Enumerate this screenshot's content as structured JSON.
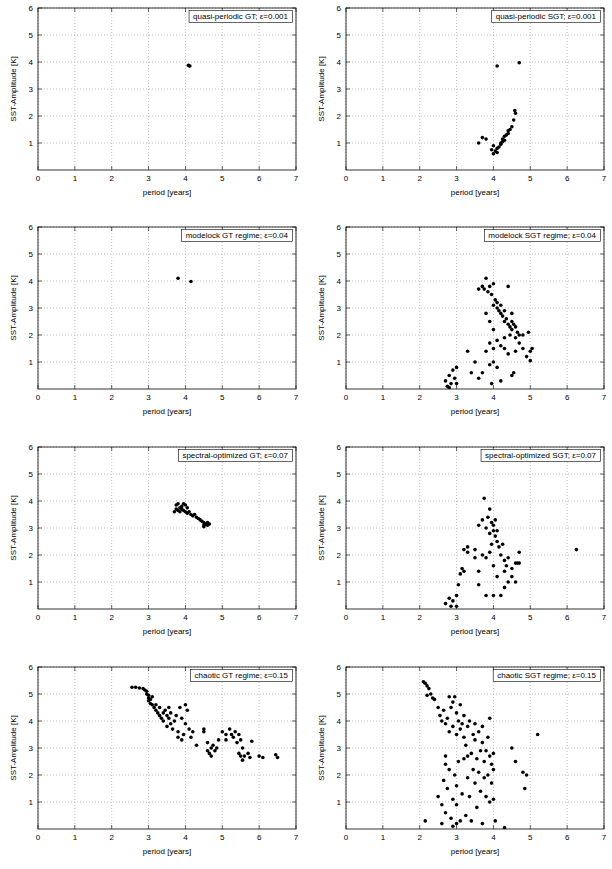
{
  "chart_data": [
    {
      "type": "scatter",
      "title": "quasi-periodic GT; ε=0.001",
      "x_label": "period [years]",
      "y_label": "SST-Amplitude [K]",
      "color": "#000000",
      "marker": "circle",
      "grid": true,
      "xlim": [
        0,
        7
      ],
      "xticks": [
        0,
        1,
        2,
        3,
        4,
        5,
        6,
        7
      ],
      "ylim": [
        0,
        6
      ],
      "yticks": [
        1,
        2,
        3,
        4,
        5,
        6
      ],
      "x": [
        4.08,
        4.1,
        4.12
      ],
      "values": [
        3.88,
        3.86,
        3.85
      ]
    },
    {
      "type": "scatter",
      "title": "quasi-periodic SGT; ε=0.001",
      "x_label": "period [years]",
      "y_label": "SST-Amplitude [K]",
      "color": "#000000",
      "marker": "circle",
      "grid": true,
      "xlim": [
        0,
        7
      ],
      "xticks": [
        0,
        1,
        2,
        3,
        4,
        5,
        6,
        7
      ],
      "ylim": [
        0,
        6
      ],
      "yticks": [
        1,
        2,
        3,
        4,
        5,
        6
      ],
      "x": [
        4.0,
        4.05,
        4.1,
        4.1,
        4.15,
        4.2,
        4.2,
        4.25,
        4.25,
        4.3,
        4.3,
        4.35,
        4.4,
        4.4,
        4.45,
        4.5,
        4.55,
        4.6,
        4.58,
        3.6,
        3.7,
        3.8,
        4.1,
        4.7,
        3.95,
        4.0
      ],
      "values": [
        0.6,
        0.7,
        0.65,
        0.8,
        0.85,
        0.95,
        1.0,
        1.05,
        1.15,
        1.1,
        1.25,
        1.3,
        1.35,
        1.45,
        1.5,
        1.6,
        1.85,
        2.1,
        2.2,
        1.0,
        1.2,
        1.15,
        3.85,
        3.97,
        0.75,
        0.9
      ]
    },
    {
      "type": "scatter",
      "title": "modelock GT regime; ε=0.04",
      "x_label": "period [years]",
      "y_label": "SST-Amplitude [K]",
      "color": "#000000",
      "marker": "circle",
      "grid": true,
      "xlim": [
        0,
        7
      ],
      "xticks": [
        0,
        1,
        2,
        3,
        4,
        5,
        6,
        7
      ],
      "ylim": [
        0,
        6
      ],
      "yticks": [
        1,
        2,
        3,
        4,
        5,
        6
      ],
      "x": [
        3.8,
        4.15
      ],
      "values": [
        4.1,
        3.98
      ]
    },
    {
      "type": "scatter",
      "title": "modelock SGT regime; ε=0.04",
      "x_label": "period [years]",
      "y_label": "SST-Amplitude [K]",
      "color": "#000000",
      "marker": "circle",
      "grid": true,
      "xlim": [
        0,
        7
      ],
      "xticks": [
        0,
        1,
        2,
        3,
        4,
        5,
        6,
        7
      ],
      "ylim": [
        0,
        6
      ],
      "yticks": [
        1,
        2,
        3,
        4,
        5,
        6
      ],
      "x": [
        2.7,
        2.75,
        2.8,
        2.85,
        2.9,
        2.95,
        3.0,
        2.8,
        3.0,
        3.3,
        3.5,
        3.6,
        3.7,
        3.8,
        3.9,
        3.95,
        4.0,
        4.1,
        4.2,
        3.7,
        3.75,
        3.8,
        3.85,
        3.9,
        3.95,
        4.0,
        4.05,
        4.0,
        4.1,
        4.1,
        4.15,
        4.2,
        4.2,
        4.25,
        4.3,
        4.3,
        4.35,
        4.4,
        4.45,
        4.5,
        4.5,
        4.55,
        4.6,
        4.65,
        4.7,
        4.4,
        4.5,
        3.8,
        3.9,
        4.0,
        4.1,
        4.2,
        4.3,
        4.4,
        4.5,
        4.55,
        4.6,
        4.7,
        4.8,
        4.9,
        4.95,
        5.0,
        5.0,
        5.05,
        4.8,
        3.6,
        3.4,
        4.3,
        4.0,
        4.45,
        4.6,
        3.9
      ],
      "values": [
        0.3,
        0.1,
        0.5,
        0.2,
        0.7,
        0.4,
        0.8,
        0.05,
        0.2,
        1.4,
        1.0,
        0.4,
        0.6,
        1.4,
        1.7,
        0.2,
        1.0,
        0.8,
        0.3,
        3.8,
        3.7,
        4.1,
        3.6,
        3.8,
        3.5,
        3.9,
        3.3,
        3.1,
        3.2,
        3.0,
        2.9,
        3.1,
        2.8,
        2.7,
        2.9,
        2.5,
        2.6,
        2.4,
        2.3,
        2.5,
        2.2,
        2.4,
        2.3,
        2.1,
        2.0,
        3.8,
        2.8,
        2.8,
        2.5,
        2.2,
        1.8,
        1.6,
        1.9,
        1.3,
        0.5,
        0.6,
        1.4,
        1.7,
        1.5,
        1.2,
        2.1,
        1.05,
        1.4,
        1.5,
        2.0,
        3.7,
        0.6,
        1.5,
        1.5,
        2.0,
        1.9,
        0.9
      ]
    },
    {
      "type": "scatter",
      "title": "spectral-optimized GT; ε=0.07",
      "x_label": "period [years]",
      "y_label": "SST-Amplitude [K]",
      "color": "#000000",
      "marker": "circle",
      "grid": true,
      "xlim": [
        0,
        7
      ],
      "xticks": [
        0,
        1,
        2,
        3,
        4,
        5,
        6,
        7
      ],
      "ylim": [
        0,
        6
      ],
      "yticks": [
        1,
        2,
        3,
        4,
        5,
        6
      ],
      "x": [
        3.75,
        3.75,
        3.8,
        3.8,
        3.85,
        3.85,
        3.9,
        3.9,
        3.95,
        4.0,
        4.0,
        4.05,
        4.05,
        4.1,
        4.15,
        4.2,
        4.25,
        4.3,
        4.35,
        4.4,
        4.45,
        4.5,
        4.5,
        4.55,
        4.6,
        4.6,
        4.65,
        4.5,
        3.7,
        3.95
      ],
      "values": [
        3.85,
        3.7,
        3.9,
        3.65,
        3.75,
        3.6,
        3.8,
        3.7,
        3.65,
        3.85,
        3.6,
        3.75,
        3.55,
        3.6,
        3.5,
        3.45,
        3.5,
        3.4,
        3.35,
        3.3,
        3.25,
        3.2,
        3.1,
        3.15,
        3.1,
        3.2,
        3.15,
        3.05,
        3.6,
        3.9
      ]
    },
    {
      "type": "scatter",
      "title": "spectral-optimized SGT; ε=0.07",
      "x_label": "period [years]",
      "y_label": "SST-Amplitude [K]",
      "color": "#000000",
      "marker": "circle",
      "grid": true,
      "xlim": [
        0,
        7
      ],
      "xticks": [
        0,
        1,
        2,
        3,
        4,
        5,
        6,
        7
      ],
      "ylim": [
        0,
        6
      ],
      "yticks": [
        1,
        2,
        3,
        4,
        5,
        6
      ],
      "x": [
        2.7,
        2.8,
        2.85,
        2.9,
        3.0,
        3.0,
        3.05,
        3.1,
        3.15,
        3.2,
        3.2,
        3.3,
        3.3,
        3.5,
        3.6,
        3.7,
        3.75,
        3.8,
        3.85,
        3.9,
        3.9,
        3.95,
        4.0,
        4.0,
        4.05,
        4.1,
        4.1,
        4.15,
        4.2,
        4.25,
        4.3,
        4.35,
        4.4,
        4.5,
        4.6,
        4.65,
        4.7,
        4.7,
        4.5,
        4.4,
        4.3,
        4.2,
        4.0,
        3.8,
        3.6,
        3.5,
        3.7,
        3.8,
        3.9,
        4.0,
        4.1,
        4.3,
        6.25,
        4.6,
        3.95,
        4.05,
        3.6
      ],
      "values": [
        0.2,
        0.4,
        0.1,
        0.3,
        0.5,
        0.1,
        0.9,
        1.3,
        1.5,
        1.4,
        2.2,
        2.3,
        2.1,
        2.2,
        3.1,
        3.3,
        4.1,
        3.0,
        3.4,
        2.8,
        3.7,
        3.2,
        3.1,
        2.9,
        2.7,
        2.5,
        2.9,
        2.3,
        2.0,
        2.4,
        1.8,
        1.6,
        1.9,
        1.5,
        1.7,
        1.7,
        1.7,
        2.1,
        1.2,
        1.0,
        0.8,
        0.5,
        0.5,
        0.5,
        1.4,
        1.9,
        2.0,
        1.9,
        2.1,
        1.6,
        1.2,
        1.4,
        2.2,
        1.0,
        2.4,
        3.3,
        0.9
      ]
    },
    {
      "type": "scatter",
      "title": "chaotic GT regime; ε=0.15",
      "x_label": "period [years]",
      "y_label": "SST-Amplitude [K]",
      "color": "#000000",
      "marker": "circle",
      "grid": true,
      "xlim": [
        0,
        7
      ],
      "xticks": [
        0,
        1,
        2,
        3,
        4,
        5,
        6,
        7
      ],
      "ylim": [
        0,
        6
      ],
      "yticks": [
        1,
        2,
        3,
        4,
        5,
        6
      ],
      "x": [
        2.55,
        2.65,
        2.75,
        2.85,
        2.9,
        2.95,
        2.95,
        3.0,
        3.0,
        3.0,
        3.05,
        3.05,
        3.1,
        3.1,
        3.15,
        3.2,
        3.2,
        3.25,
        3.3,
        3.3,
        3.35,
        3.4,
        3.4,
        3.45,
        3.5,
        3.5,
        3.55,
        3.55,
        3.6,
        3.6,
        3.65,
        3.7,
        3.75,
        3.8,
        3.85,
        3.9,
        3.95,
        4.0,
        4.0,
        4.05,
        4.1,
        4.15,
        4.2,
        3.9,
        3.8,
        4.3,
        4.5,
        4.5,
        4.6,
        4.6,
        4.65,
        4.7,
        4.7,
        4.75,
        4.8,
        4.85,
        4.9,
        5.0,
        5.1,
        5.1,
        5.2,
        5.25,
        5.3,
        5.35,
        5.4,
        5.45,
        5.5,
        5.55,
        5.5,
        5.55,
        5.6,
        5.7,
        5.75,
        5.8,
        6.0,
        6.1,
        6.45,
        6.5,
        5.45
      ],
      "values": [
        5.25,
        5.25,
        5.22,
        5.2,
        5.15,
        5.1,
        5.0,
        4.95,
        4.85,
        4.75,
        4.8,
        4.65,
        4.9,
        4.6,
        4.5,
        4.4,
        4.6,
        4.3,
        4.5,
        4.2,
        4.1,
        4.3,
        4.0,
        4.4,
        4.2,
        3.8,
        4.5,
        4.1,
        3.9,
        4.3,
        3.7,
        4.0,
        4.2,
        3.6,
        4.5,
        4.1,
        3.5,
        4.6,
        3.9,
        4.4,
        3.7,
        3.4,
        3.6,
        3.3,
        3.4,
        3.1,
        3.6,
        3.7,
        3.2,
        2.9,
        2.8,
        3.0,
        2.7,
        3.1,
        2.9,
        3.0,
        3.3,
        3.6,
        3.5,
        3.3,
        3.7,
        3.5,
        3.4,
        3.6,
        3.2,
        3.5,
        3.3,
        3.0,
        2.7,
        2.55,
        2.7,
        2.8,
        2.65,
        3.25,
        2.7,
        2.65,
        2.75,
        2.65,
        2.8
      ]
    },
    {
      "type": "scatter",
      "title": "chaotic SGT regime; ε=0.15",
      "x_label": "period [years]",
      "y_label": "SST-Amplitude [K]",
      "color": "#000000",
      "marker": "circle",
      "grid": true,
      "xlim": [
        0,
        7
      ],
      "xticks": [
        0,
        1,
        2,
        3,
        4,
        5,
        6,
        7
      ],
      "ylim": [
        0,
        6
      ],
      "yticks": [
        1,
        2,
        3,
        4,
        5,
        6
      ],
      "x": [
        2.1,
        2.15,
        2.2,
        2.25,
        2.3,
        2.35,
        2.2,
        2.4,
        2.5,
        2.55,
        2.6,
        2.65,
        2.7,
        2.75,
        2.8,
        2.8,
        2.85,
        2.9,
        2.9,
        2.95,
        3.0,
        3.0,
        3.05,
        3.1,
        3.1,
        3.15,
        3.2,
        3.2,
        3.25,
        3.3,
        3.35,
        3.4,
        3.45,
        3.5,
        3.5,
        3.55,
        3.6,
        3.65,
        3.7,
        3.7,
        3.75,
        3.8,
        3.85,
        3.9,
        3.9,
        3.95,
        4.0,
        4.0,
        2.7,
        2.15,
        2.6,
        2.5,
        2.6,
        2.65,
        2.7,
        2.7,
        2.75,
        2.8,
        2.85,
        2.9,
        2.95,
        3.0,
        3.0,
        3.05,
        3.1,
        3.15,
        3.2,
        3.25,
        3.3,
        3.35,
        3.4,
        3.45,
        3.5,
        3.55,
        3.6,
        3.65,
        3.7,
        3.75,
        3.8,
        3.85,
        3.9,
        3.95,
        4.0,
        4.05,
        4.3,
        4.5,
        4.6,
        4.8,
        4.85,
        4.9,
        5.2,
        3.0,
        2.9,
        3.3
      ],
      "values": [
        5.45,
        5.4,
        5.3,
        5.2,
        5.0,
        4.85,
        4.95,
        4.8,
        4.5,
        4.2,
        4.0,
        4.4,
        3.9,
        4.1,
        4.9,
        3.6,
        4.5,
        4.7,
        3.8,
        4.9,
        4.3,
        3.5,
        4.0,
        3.7,
        4.6,
        3.9,
        3.4,
        4.2,
        3.1,
        3.8,
        4.0,
        2.8,
        3.5,
        3.9,
        3.3,
        2.6,
        3.6,
        2.9,
        3.2,
        3.8,
        2.5,
        2.9,
        3.4,
        2.7,
        4.1,
        2.4,
        2.8,
        2.2,
        2.4,
        0.3,
        0.2,
        1.2,
        0.9,
        1.8,
        2.7,
        0.6,
        1.5,
        2.2,
        0.4,
        1.1,
        2.0,
        1.6,
        0.9,
        2.5,
        0.3,
        1.3,
        2.6,
        0.5,
        1.9,
        1.2,
        0.3,
        2.2,
        1.7,
        0.8,
        2.1,
        1.4,
        0.2,
        1.9,
        1.2,
        2.0,
        1.0,
        1.7,
        1.1,
        0.3,
        0.05,
        3.0,
        2.5,
        2.1,
        1.5,
        2.0,
        3.5,
        0.2,
        0.1,
        2.7
      ]
    }
  ]
}
